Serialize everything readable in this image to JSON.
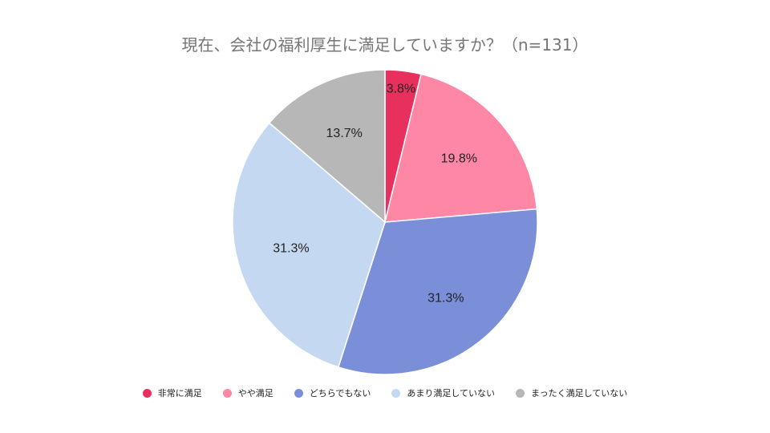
{
  "chart_data": {
    "type": "pie",
    "title": "現在、会社の福利厚生に満足していますか？（n=131）",
    "start_angle": "12 o'clock",
    "direction": "clockwise",
    "legend_position": "bottom",
    "slices": [
      {
        "label": "非常に満足",
        "value": 3.8,
        "value_label": "3.8%",
        "color": "#e8305f"
      },
      {
        "label": "やや満足",
        "value": 19.8,
        "value_label": "19.8%",
        "color": "#fd87a5"
      },
      {
        "label": "どちらでもない",
        "value": 31.3,
        "value_label": "31.3%",
        "color": "#7b8fd9"
      },
      {
        "label": "あまり満足していない",
        "value": 31.3,
        "value_label": "31.3%",
        "color": "#c5d8f2"
      },
      {
        "label": "まったく満足していない",
        "value": 13.7,
        "value_label": "13.7%",
        "color": "#b7b7b7"
      }
    ]
  }
}
